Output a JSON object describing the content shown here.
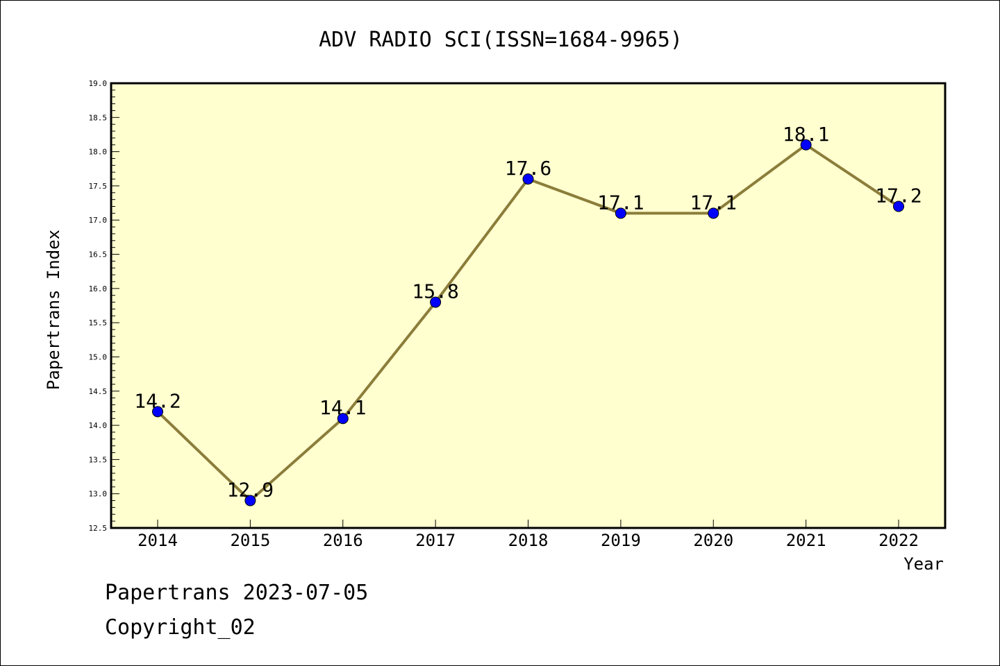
{
  "footer": {
    "source_line": "Papertrans 2023-07-05",
    "copyright": "Copyright_02"
  },
  "chart_data": {
    "type": "line",
    "title": "ADV RADIO SCI(ISSN=1684-9965)",
    "xlabel": "Year",
    "ylabel": "Papertrans Index",
    "categories": [
      "2014",
      "2015",
      "2016",
      "2017",
      "2018",
      "2019",
      "2020",
      "2021",
      "2022"
    ],
    "series": [
      {
        "values": [
          14.2,
          12.9,
          14.1,
          15.8,
          17.6,
          17.1,
          17.1,
          18.1,
          17.2
        ],
        "labels": [
          "14.2",
          "12.9",
          "14.1",
          "15.8",
          "17.6",
          "17.1",
          "17.1",
          "18.1",
          "17.2"
        ]
      }
    ],
    "ylim": [
      12.5,
      19.0
    ],
    "yticks": [
      "12.5",
      "13.0",
      "13.5",
      "14.0",
      "14.5",
      "15.0",
      "15.5",
      "16.0",
      "16.5",
      "17.0",
      "17.5",
      "18.0",
      "18.5",
      "19.0"
    ],
    "grid": false,
    "colors": {
      "plot_background": "#ffffd0",
      "line": "#8b7d3a",
      "marker": "#0000ff"
    }
  }
}
